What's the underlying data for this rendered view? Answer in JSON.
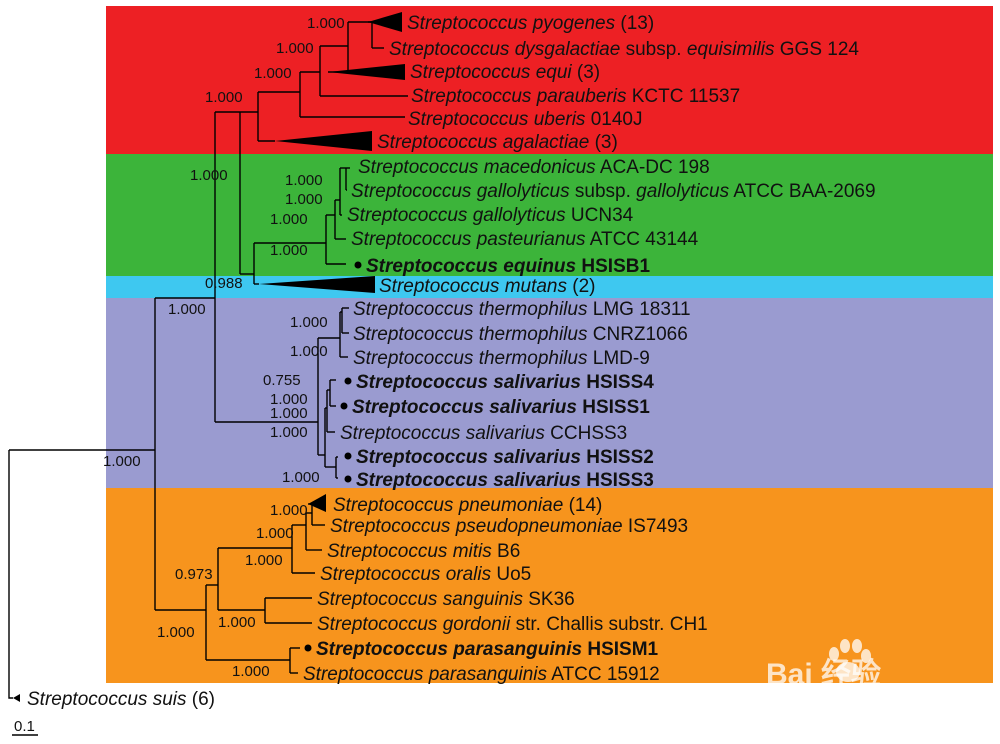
{
  "clades": [
    {
      "color": "#ed2024"
    },
    {
      "color": "#3cb43a"
    },
    {
      "color": "#3ec8f0"
    },
    {
      "color": "#9a9bd0"
    },
    {
      "color": "#f7941d"
    }
  ],
  "taxa": [
    {
      "genus": "Streptococcus",
      "species": "pyogenes",
      "count": "(13)"
    },
    {
      "genus": "Streptococcus",
      "species": "dysgalactiae",
      "subsp_prefix": "subsp.",
      "subspecies": "equisimilis",
      "strain": "GGS 124"
    },
    {
      "genus": "Streptococcus",
      "species": "equi",
      "count": "(3)"
    },
    {
      "genus": "Streptococcus",
      "species": "parauberis",
      "strain": "KCTC 11537"
    },
    {
      "genus": "Streptococcus",
      "species": "uberis",
      "strain": "0140J"
    },
    {
      "genus": "Streptococcus",
      "species": "agalactiae",
      "count": "(3)"
    },
    {
      "genus": "Streptococcus",
      "species": "macedonicus",
      "strain": "ACA-DC 198"
    },
    {
      "genus": "Streptococcus",
      "species": "gallolyticus",
      "subsp_prefix": "subsp.",
      "subspecies": "gallolyticus",
      "strain": "ATCC BAA-2069"
    },
    {
      "genus": "Streptococcus",
      "species": "gallolyticus",
      "strain": "UCN34"
    },
    {
      "genus": "Streptococcus",
      "species": "pasteurianus",
      "strain": "ATCC 43144"
    },
    {
      "genus": "Streptococcus",
      "species": "equinus",
      "strain": "HSISB1"
    },
    {
      "genus": "Streptococcus",
      "species": "mutans",
      "count": "(2)"
    },
    {
      "genus": "Streptococcus",
      "species": "thermophilus",
      "strain": "LMG 18311"
    },
    {
      "genus": "Streptococcus",
      "species": "thermophilus",
      "strain": "CNRZ1066"
    },
    {
      "genus": "Streptococcus",
      "species": "thermophilus",
      "strain": "LMD-9"
    },
    {
      "genus": "Streptococcus",
      "species": "salivarius",
      "strain": "HSISS4"
    },
    {
      "genus": "Streptococcus",
      "species": "salivarius",
      "strain": "HSISS1"
    },
    {
      "genus": "Streptococcus",
      "species": "salivarius",
      "strain": "CCHSS3"
    },
    {
      "genus": "Streptococcus",
      "species": "salivarius",
      "strain": "HSISS2"
    },
    {
      "genus": "Streptococcus",
      "species": "salivarius",
      "strain": "HSISS3"
    },
    {
      "genus": "Streptococcus",
      "species": "pneumoniae",
      "count": "(14)"
    },
    {
      "genus": "Streptococcus",
      "species": "pseudopneumoniae",
      "strain": "IS7493"
    },
    {
      "genus": "Streptococcus",
      "species": "mitis",
      "strain": "B6"
    },
    {
      "genus": "Streptococcus",
      "species": "oralis",
      "strain": "Uo5"
    },
    {
      "genus": "Streptococcus",
      "species": "sanguinis",
      "strain": "SK36"
    },
    {
      "genus": "Streptococcus",
      "species": "gordonii",
      "strain": "str. Challis substr. CH1"
    },
    {
      "genus": "Streptococcus",
      "species": "parasanguinis",
      "strain": "HSISM1"
    },
    {
      "genus": "Streptococcus",
      "species": "parasanguinis",
      "strain": "ATCC 15912"
    },
    {
      "genus": "Streptococcus",
      "species": "suis",
      "count": "(6)"
    }
  ],
  "support": [
    "1.000",
    "1.000",
    "1.000",
    "1.000",
    "1.000",
    "1.000",
    "1.000",
    "1.000",
    "1.000",
    "0.988",
    "1.000",
    "1.000",
    "1.000",
    "0.755",
    "1.000",
    "1.000",
    "1.000",
    "1.000",
    "1.000",
    "1.000",
    "1.000",
    "1.000",
    "0.973",
    "1.000",
    "1.000",
    "1.000"
  ],
  "scale_bar": "0.1",
  "watermark": {
    "logo": "Bai    经验",
    "url": "jingyan.baidu.com"
  }
}
